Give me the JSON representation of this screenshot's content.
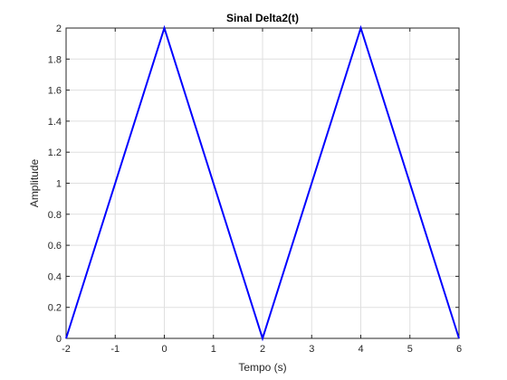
{
  "chart_data": {
    "type": "line",
    "title": "Sinal Delta2(t)",
    "xlabel": "Tempo (s)",
    "ylabel": "Amplitude",
    "xlim": [
      -2,
      6
    ],
    "ylim": [
      0,
      2
    ],
    "xticks": [
      "-2",
      "-1",
      "0",
      "1",
      "2",
      "3",
      "4",
      "5",
      "6"
    ],
    "yticks": [
      "0",
      "0.2",
      "0.4",
      "0.6",
      "0.8",
      "1",
      "1.2",
      "1.4",
      "1.6",
      "1.8",
      "2"
    ],
    "grid": true,
    "series": [
      {
        "color": "#0000ff",
        "x": [
          -2,
          0,
          2,
          4,
          6
        ],
        "y": [
          0,
          2,
          0,
          2,
          0
        ]
      }
    ]
  }
}
